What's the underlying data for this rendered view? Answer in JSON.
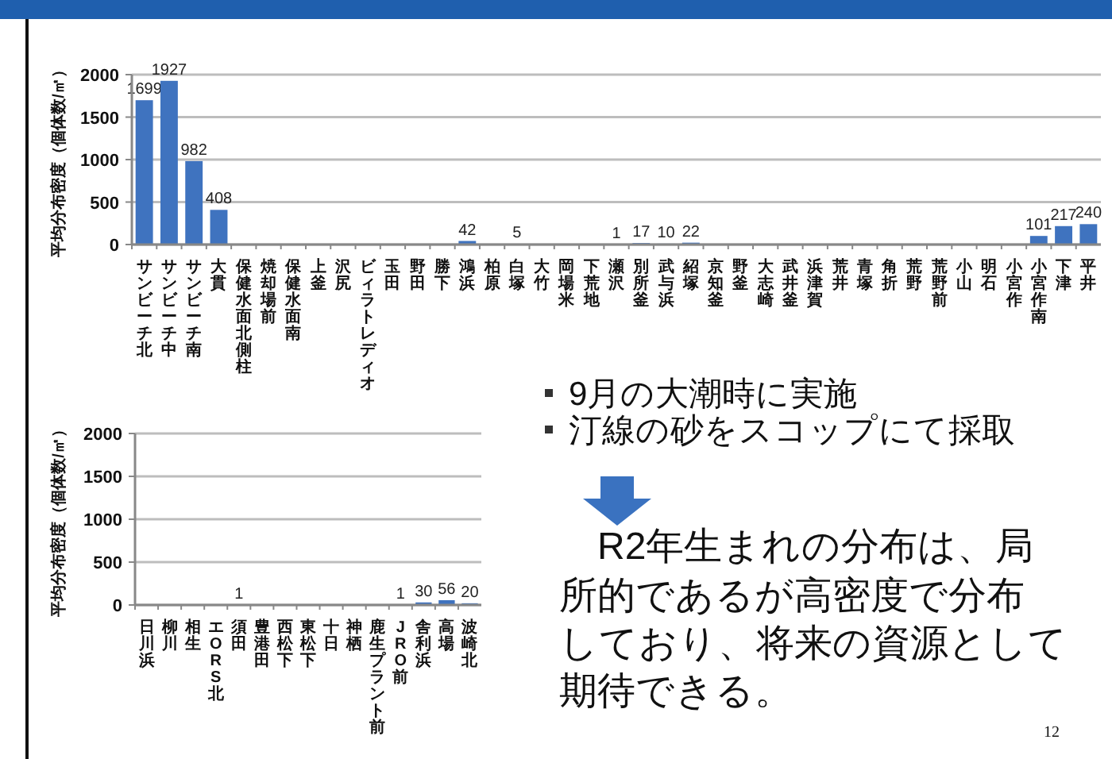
{
  "chart_data": [
    {
      "type": "bar",
      "ylabel": "平均分布密度（個体数/㎡）",
      "color": "#3f73bf",
      "ylim": [
        0,
        2000
      ],
      "yticks": [
        0,
        500,
        1000,
        1500,
        2000
      ],
      "grid": "y",
      "categories": [
        "サンビーチ北",
        "サンビーチ中",
        "サンビーチ南",
        "大貫",
        "保健水面北側柱",
        "焼却場前",
        "保健水面南",
        "上釜",
        "沢尻",
        "ビィラトレディオ",
        "玉田",
        "野田",
        "勝下",
        "鴻浜",
        "柏原",
        "白塚",
        "大竹",
        "岡場米",
        "下荒地",
        "瀬沢",
        "別所釜",
        "武与浜",
        "紹塚",
        "京知釜",
        "野釜",
        "大志崎",
        "武井釜",
        "浜津賀",
        "荒井",
        "青塚",
        "角折",
        "荒野",
        "荒野前",
        "小山",
        "明石",
        "小宮作",
        "小宮作南",
        "下津",
        "平井"
      ],
      "values": [
        1699,
        1927,
        982,
        408,
        0,
        0,
        0,
        0,
        0,
        0,
        0,
        0,
        0,
        42,
        0,
        5,
        0,
        0,
        0,
        1,
        17,
        10,
        22,
        0,
        0,
        0,
        0,
        0,
        0,
        0,
        0,
        0,
        0,
        0,
        0,
        0,
        101,
        217,
        240
      ],
      "value_labels": [
        "1699",
        "1927",
        "982",
        "408",
        null,
        null,
        null,
        null,
        null,
        null,
        null,
        null,
        null,
        "42",
        null,
        "5",
        null,
        null,
        null,
        "1",
        "17",
        "10",
        "22",
        null,
        null,
        null,
        null,
        null,
        null,
        null,
        null,
        null,
        null,
        null,
        null,
        null,
        "101",
        "217",
        "240"
      ]
    },
    {
      "type": "bar",
      "ylabel": "平均分布密度（個体数/㎡）",
      "color": "#3f73bf",
      "ylim": [
        0,
        2000
      ],
      "yticks": [
        0,
        500,
        1000,
        1500,
        2000
      ],
      "grid": "y",
      "categories": [
        "日川浜",
        "柳川",
        "相生",
        "エORS北",
        "須田",
        "豊港田",
        "西松下",
        "東松下",
        "十日",
        "神栖",
        "鹿生プラント前",
        "JRO前",
        "舎利浜",
        "高場",
        "波崎北"
      ],
      "values": [
        0,
        0,
        0,
        0,
        1,
        0,
        0,
        0,
        0,
        0,
        0,
        1,
        30,
        56,
        20
      ],
      "value_labels": [
        null,
        null,
        null,
        null,
        "1",
        null,
        null,
        null,
        null,
        null,
        null,
        "1",
        "30",
        "56",
        "20"
      ]
    },
    {
      "type": "other",
      "annotations": [
        "9月の大潮時に実施",
        "汀線の砂をスコップにて採取",
        "　R2年生まれの分布は、局",
        "所的であるが高密度で分布",
        "しており、将来の資源として",
        "期待できる。",
        "12"
      ]
    }
  ]
}
